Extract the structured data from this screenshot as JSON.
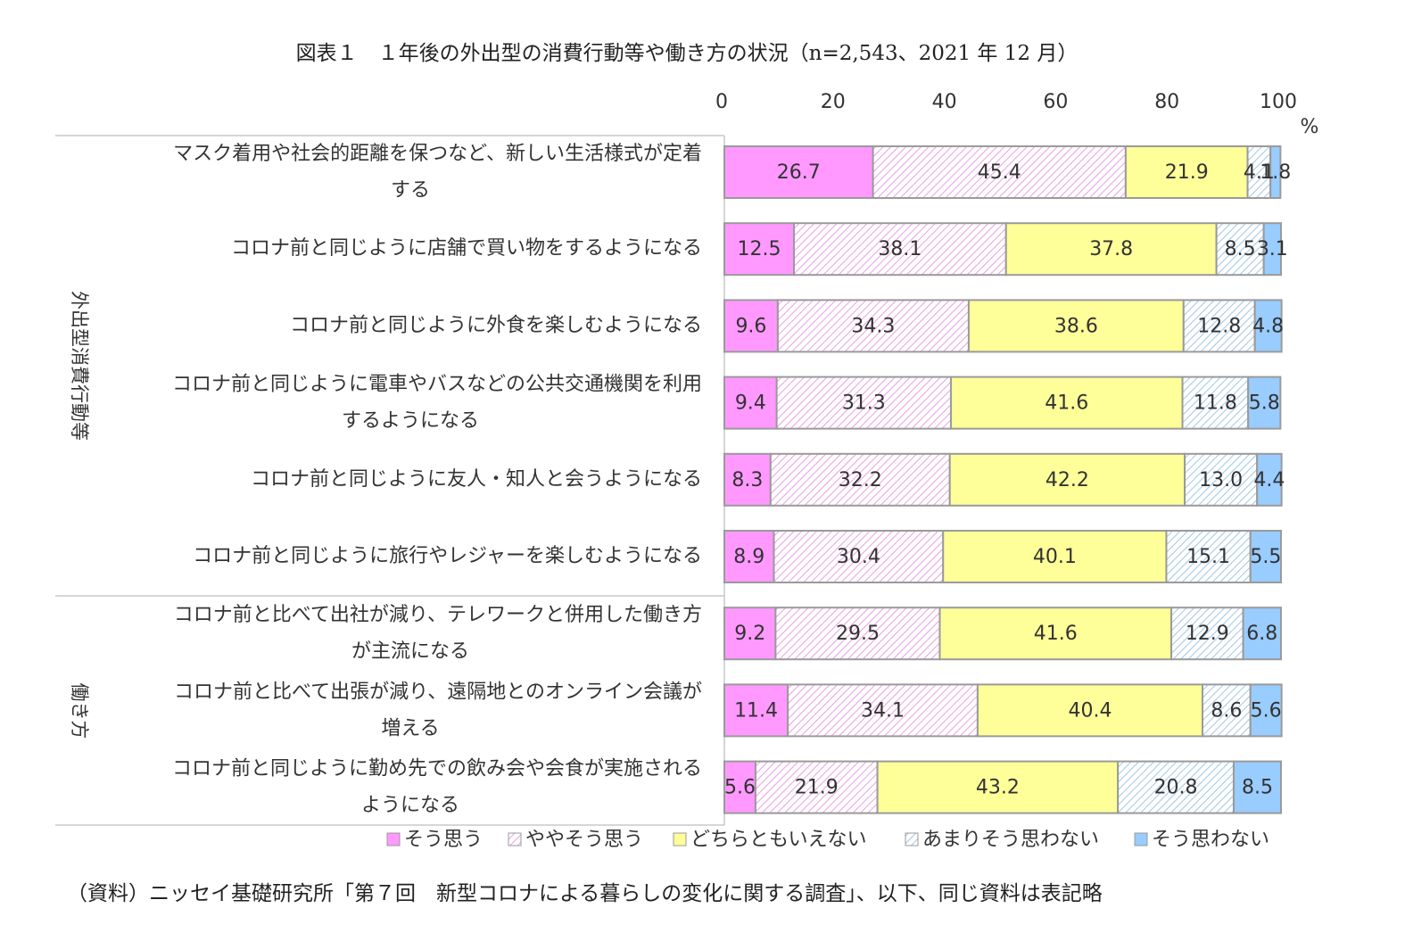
{
  "title": "図表１　１年後の外出型の消費行動等や働き方の状況（n=2,543、2021 年 12 月）",
  "source": "（資料）ニッセイ基礎研究所「第７回　新型コロナによる暮らしの変化に関する調査」、以下、同じ資料は表記略",
  "colors": {
    "s1": "#ff99ff",
    "s2_line": "#e8a0e0",
    "s3": "#ffff99",
    "s4_line": "#9fc7e6",
    "s5": "#99ccff",
    "bar_border": "#9a9a9a"
  },
  "chart_data": {
    "type": "bar",
    "orientation": "horizontal",
    "stacked": true,
    "xlim": [
      0,
      100
    ],
    "xticks": [
      "0",
      "20",
      "40",
      "60",
      "80",
      "100"
    ],
    "xunit": "%",
    "groups": [
      {
        "label": "外出型消費行動等",
        "rows": [
          0,
          1,
          2,
          3,
          4,
          5
        ]
      },
      {
        "label": "働き方",
        "rows": [
          6,
          7,
          8
        ]
      }
    ],
    "categories": [
      [
        "マスク着用や社会的距離を保つなど、新しい生活様式が定着",
        "する"
      ],
      [
        "コロナ前と同じように店舗で買い物をするようになる"
      ],
      [
        "コロナ前と同じように外食を楽しむようになる"
      ],
      [
        "コロナ前と同じように電車やバスなどの公共交通機関を利用",
        "するようになる"
      ],
      [
        "コロナ前と同じように友人・知人と会うようになる"
      ],
      [
        "コロナ前と同じように旅行やレジャーを楽しむようになる"
      ],
      [
        "コロナ前と比べて出社が減り、テレワークと併用した働き方",
        "が主流になる"
      ],
      [
        "コロナ前と比べて出張が減り、遠隔地とのオンライン会議が",
        "増える"
      ],
      [
        "コロナ前と同じように勤め先での飲み会や会食が実施される",
        "ようになる"
      ]
    ],
    "series": [
      {
        "name": "そう思う",
        "values": [
          26.7,
          12.5,
          9.6,
          9.4,
          8.3,
          8.9,
          9.2,
          11.4,
          5.6
        ]
      },
      {
        "name": "ややそう思う",
        "values": [
          45.4,
          38.1,
          34.3,
          31.3,
          32.2,
          30.4,
          29.5,
          34.1,
          21.9
        ]
      },
      {
        "name": "どちらともいえない",
        "values": [
          21.9,
          37.8,
          38.6,
          41.6,
          42.2,
          40.1,
          41.6,
          40.4,
          43.2
        ]
      },
      {
        "name": "あまりそう思わない",
        "values": [
          4.1,
          8.5,
          12.8,
          11.8,
          13.0,
          15.1,
          12.9,
          8.6,
          20.8
        ]
      },
      {
        "name": "そう思わない",
        "values": [
          1.8,
          3.1,
          4.8,
          5.8,
          4.4,
          5.5,
          6.8,
          5.6,
          8.5
        ]
      }
    ],
    "legend_position": "bottom"
  }
}
